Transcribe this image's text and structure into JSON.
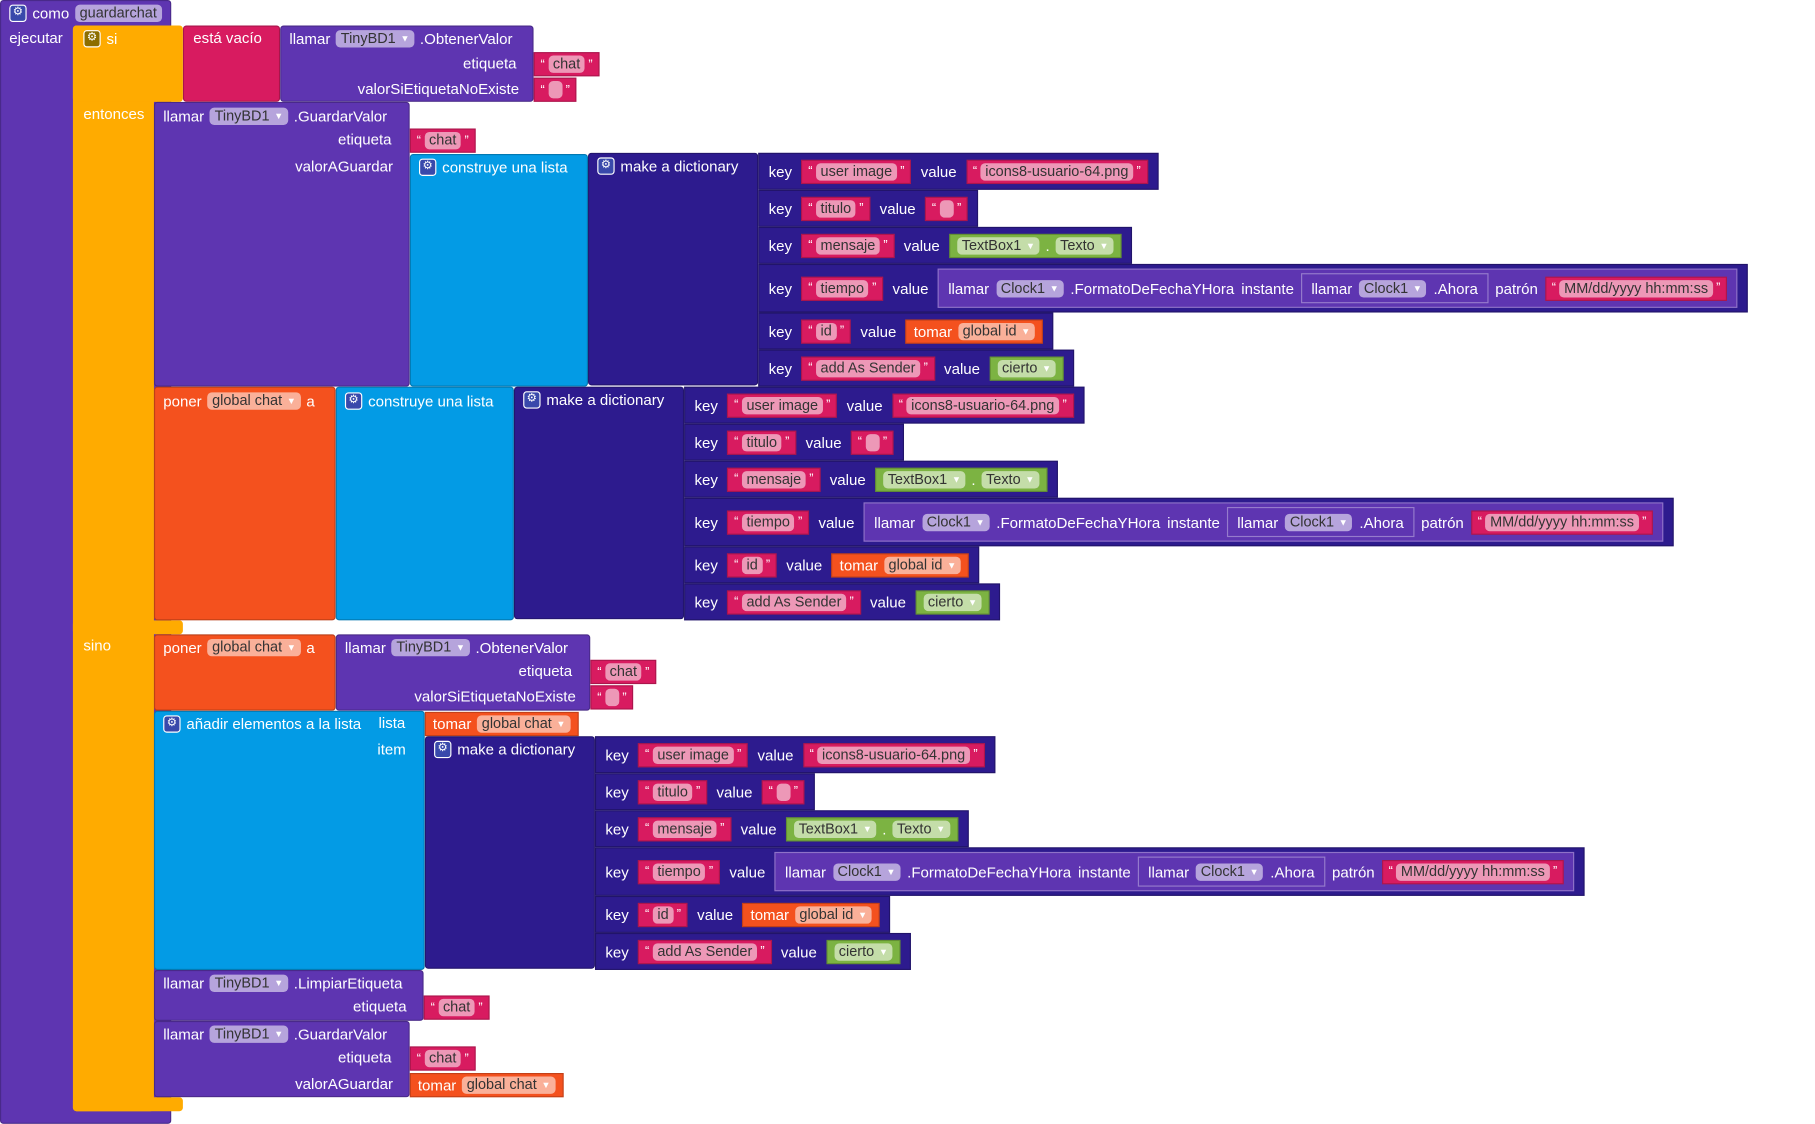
{
  "event": {
    "keyword": "como",
    "name": "guardarchat",
    "do": "ejecutar"
  },
  "if_block": {
    "if": "si",
    "then": "entonces",
    "else": "sino"
  },
  "is_empty": "está vacío",
  "call": "llamar",
  "components": {
    "db": "TinyBD1",
    "clock": "Clock1",
    "textbox": "TextBox1",
    "text_prop": "Texto"
  },
  "methods": {
    "get": ".ObtenerValor",
    "store": ".GuardarValor",
    "clear": ".LimpiarEtiqueta",
    "format": ".FormatoDeFechaYHora",
    "now": ".Ahora"
  },
  "params": {
    "tag": "etiqueta",
    "default": "valorSiEtiquetaNoExiste",
    "value_to_store": "valorAGuardar",
    "instant": "instante",
    "pattern": "patrón",
    "list": "lista",
    "item": "item"
  },
  "strings": {
    "chat": "chat",
    "empty": "",
    "pattern": "MM/dd/yyyy hh:mm:ss"
  },
  "list": {
    "make": "construye una lista",
    "add": "añadir elementos a la lista"
  },
  "vars": {
    "set": "poner",
    "to": "a",
    "get": "tomar",
    "chat": "global chat",
    "id": "global id"
  },
  "dict": {
    "make": "make a dictionary",
    "key": "key",
    "value": "value",
    "entries": [
      {
        "key": "user image",
        "type": "text",
        "value": "icons8-usuario-64.png"
      },
      {
        "key": "titulo",
        "type": "text",
        "value": ""
      },
      {
        "key": "mensaje",
        "type": "textbox"
      },
      {
        "key": "tiempo",
        "type": "clock"
      },
      {
        "key": "id",
        "type": "var"
      },
      {
        "key": "add As Sender",
        "type": "bool",
        "value": "cierto"
      }
    ]
  },
  "colors": {
    "event": "#5e35b1",
    "control": "#ffab00",
    "text": "#d81b60",
    "dictionary": "#2d1b8e",
    "list": "#039be5",
    "variable": "#f4511e",
    "logic": "#7cb342"
  }
}
